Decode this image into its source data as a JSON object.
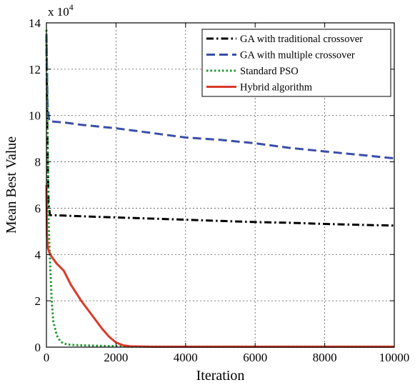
{
  "chart_data": {
    "type": "line",
    "xlabel": "Iteration",
    "ylabel": "Mean Best Value",
    "y_multiplier_label": "x 10",
    "y_multiplier_exponent": "4",
    "xlim": [
      0,
      10000
    ],
    "ylim": [
      0,
      14
    ],
    "xticks": [
      0,
      2000,
      4000,
      6000,
      8000,
      10000
    ],
    "yticks": [
      0,
      2,
      4,
      6,
      8,
      10,
      12,
      14
    ],
    "grid": true,
    "legend_position": "top-right",
    "series": [
      {
        "name": "GA with traditional crossover",
        "color": "#000000",
        "dash": "dashdot",
        "x": [
          0,
          25,
          60,
          100,
          500,
          1000,
          2000,
          3000,
          4000,
          5000,
          6000,
          7000,
          8000,
          9000,
          10000
        ],
        "y": [
          13.5,
          9.5,
          6.2,
          5.7,
          5.68,
          5.65,
          5.6,
          5.55,
          5.5,
          5.45,
          5.4,
          5.37,
          5.32,
          5.28,
          5.25
        ]
      },
      {
        "name": "GA with multiple crossover",
        "color": "#3a4ea8",
        "dash": "dashed",
        "x": [
          0,
          30,
          80,
          500,
          1000,
          2000,
          3000,
          4000,
          5000,
          6000,
          7000,
          8000,
          9000,
          10000
        ],
        "y": [
          13.5,
          10.5,
          9.75,
          9.7,
          9.6,
          9.45,
          9.25,
          9.05,
          8.95,
          8.8,
          8.6,
          8.45,
          8.3,
          8.15
        ]
      },
      {
        "name": "Standard PSO",
        "color": "#1f9a2e",
        "dash": "dotted",
        "x": [
          0,
          20,
          50,
          100,
          150,
          200,
          300,
          400,
          500,
          700,
          1000,
          1500,
          2000,
          2500,
          10000
        ],
        "y": [
          13.7,
          11.5,
          6.0,
          3.8,
          2.0,
          1.1,
          0.5,
          0.25,
          0.15,
          0.1,
          0.08,
          0.06,
          0.04,
          0.02,
          0.02
        ]
      },
      {
        "name": "Hybrid algorithm",
        "color": "#d93a2b",
        "dash": "solid",
        "x": [
          0,
          15,
          40,
          80,
          150,
          300,
          500,
          700,
          1000,
          1300,
          1600,
          1800,
          2000,
          2200,
          2400,
          3000,
          10000
        ],
        "y": [
          7.0,
          4.8,
          4.3,
          4.1,
          3.9,
          3.6,
          3.3,
          2.7,
          2.0,
          1.4,
          0.8,
          0.45,
          0.2,
          0.08,
          0.04,
          0.02,
          0.02
        ]
      }
    ]
  }
}
